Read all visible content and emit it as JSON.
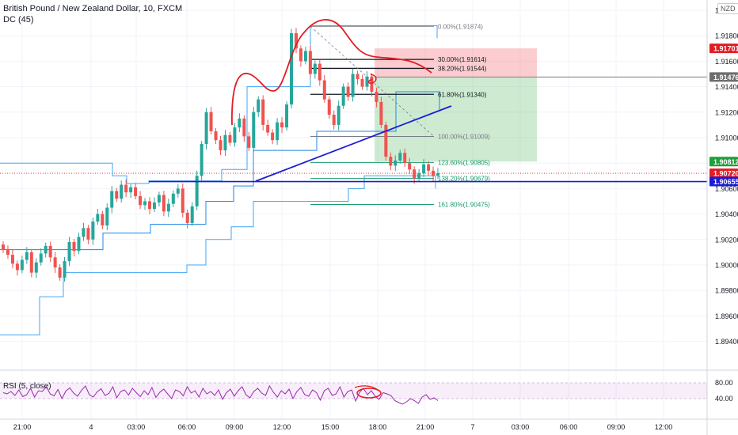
{
  "header": {
    "title": "British Pound / New Zealand Dollar, 10, FXCM",
    "indicator": "DC (45)",
    "currency": "NZD"
  },
  "rsi": {
    "label": "RSI (5, close)",
    "levels": [
      "80.00",
      "40.00"
    ],
    "upper": 80,
    "lower": 40,
    "values": [
      55,
      52,
      58,
      48,
      62,
      45,
      50,
      66,
      44,
      60,
      58,
      70,
      52,
      47,
      63,
      40,
      59,
      67,
      54,
      46,
      61,
      72,
      50,
      44,
      57,
      65,
      48,
      53,
      70,
      42,
      58,
      62,
      49,
      66,
      55,
      45,
      60,
      50,
      68,
      43,
      56,
      64,
      52,
      40,
      62,
      58,
      47,
      70,
      54,
      60,
      44,
      66,
      52,
      58,
      48,
      62,
      38,
      55,
      64,
      46,
      60,
      70,
      50,
      42,
      58,
      66,
      54,
      48,
      72,
      56,
      44,
      60,
      52,
      64,
      40,
      58,
      68,
      50,
      46,
      62,
      55,
      36,
      60,
      66,
      48,
      52,
      70,
      44,
      58,
      62,
      34,
      56,
      66,
      50,
      60,
      46,
      38,
      55,
      52,
      48,
      35,
      30,
      26,
      32,
      40,
      35,
      28,
      44,
      50,
      38,
      42,
      35
    ]
  },
  "chart_data": {
    "type": "candlestick",
    "symbol": "British Pound / New Zealand Dollar",
    "timeframe": "10",
    "ylim": [
      1.893,
      1.92
    ],
    "y_ticks": [
      "1.92000",
      "1.91800",
      "1.91600",
      "1.91400",
      "1.91200",
      "1.91000",
      "1.90800",
      "1.90600",
      "1.90400",
      "1.90200",
      "1.90000",
      "1.89800",
      "1.89600",
      "1.89400"
    ],
    "x_ticks": [
      "21:00",
      "4",
      "03:00",
      "06:00",
      "09:00",
      "12:00",
      "15:00",
      "18:00",
      "21:00",
      "7",
      "03:00",
      "06:00",
      "09:00",
      "12:00"
    ],
    "price_tags": [
      {
        "value": "1.91701",
        "color": "#e31b23",
        "text_color": "#ffffff"
      },
      {
        "value": "1.91476",
        "color": "#6e6e6e",
        "text_color": "#ffffff"
      },
      {
        "value": "1.90812",
        "color": "#1f9e3a",
        "text_color": "#ffffff"
      },
      {
        "value": "1.90720",
        "color": "#e31b23",
        "text_color": "#ffffff"
      },
      {
        "value": "1.90655",
        "color": "#1b1bd6",
        "text_color": "#ffffff"
      }
    ],
    "fib_levels": [
      {
        "label": "0.00%(1.91874)",
        "price": 1.91874
      },
      {
        "label": "30.00%(1.91614)",
        "price": 1.91614
      },
      {
        "label": "38.20%(1.91544)",
        "price": 1.91544
      },
      {
        "label": "61.80%(1.91340)",
        "price": 1.9134
      },
      {
        "label": "100.00%(1.91009)",
        "price": 1.91009
      },
      {
        "label": "123.60%(1.90805)",
        "price": 1.90805
      },
      {
        "label": "138.20%(1.90679)",
        "price": 1.90679
      },
      {
        "label": "161.80%(1.90475)",
        "price": 1.90475
      }
    ],
    "horizontal_line": 1.90655,
    "current_price": 1.9072,
    "position": {
      "entry": 1.91476,
      "stop": 1.91701,
      "target": 1.90812
    },
    "closes": [
      1.9012,
      1.9008,
      1.9001,
      1.8996,
      1.9004,
      1.901,
      1.8994,
      1.9002,
      1.9009,
      1.9015,
      1.9006,
      1.8998,
      1.899,
      1.9003,
      1.9018,
      1.9011,
      1.9022,
      1.9029,
      1.902,
      1.9034,
      1.904,
      1.9031,
      1.9045,
      1.9058,
      1.9052,
      1.9063,
      1.9057,
      1.9061,
      1.9054,
      1.9047,
      1.905,
      1.9044,
      1.9049,
      1.9055,
      1.9042,
      1.9048,
      1.9056,
      1.906,
      1.9041,
      1.9033,
      1.9046,
      1.907,
      1.9095,
      1.912,
      1.9105,
      1.9098,
      1.909,
      1.9102,
      1.9096,
      1.9108,
      1.9115,
      1.9101,
      1.9092,
      1.912,
      1.913,
      1.911,
      1.9104,
      1.9098,
      1.9112,
      1.9108,
      1.9126,
      1.9182,
      1.917,
      1.916,
      1.9168,
      1.915,
      1.9158,
      1.9145,
      1.913,
      1.9118,
      1.911,
      1.9125,
      1.914,
      1.9132,
      1.915,
      1.9146,
      1.914,
      1.9148,
      1.9136,
      1.9128,
      1.911,
      1.9085,
      1.9078,
      1.9082,
      1.9088,
      1.908,
      1.9075,
      1.9068,
      1.9072,
      1.9079,
      1.9074,
      1.907,
      1.9072
    ]
  }
}
